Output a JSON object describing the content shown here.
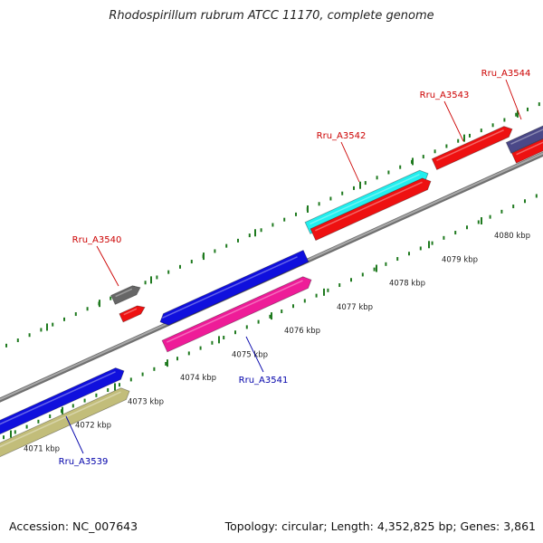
{
  "title": "Rhodospirillum rubrum ATCC 11170, complete genome",
  "footer": {
    "accession": "Accession: NC_007643",
    "stats": "Topology: circular; Length: 4,352,825 bp; Genes: 3,861"
  },
  "colors": {
    "background": "#ffffff",
    "backbone": "#8a8a8a",
    "tick": "#1f7a1f",
    "label_forward": "#cc0000",
    "label_reverse": "#0000aa",
    "leader_forward": "#cc0000",
    "leader_reverse": "#0000aa"
  },
  "scale_ticks": [
    {
      "label": "4071 kbp"
    },
    {
      "label": "4072 kbp"
    },
    {
      "label": "4073 kbp"
    },
    {
      "label": "4074 kbp"
    },
    {
      "label": "4075 kbp"
    },
    {
      "label": "4076 kbp"
    },
    {
      "label": "4077 kbp"
    },
    {
      "label": "4078 kbp"
    },
    {
      "label": "4079 kbp"
    },
    {
      "label": "4080 kbp"
    }
  ],
  "gene_labels": [
    {
      "name": "Rru_A3539",
      "strand": "reverse"
    },
    {
      "name": "Rru_A3540",
      "strand": "forward"
    },
    {
      "name": "Rru_A3541",
      "strand": "reverse"
    },
    {
      "name": "Rru_A3542",
      "strand": "forward"
    },
    {
      "name": "Rru_A3543",
      "strand": "forward"
    },
    {
      "name": "Rru_A3544",
      "strand": "forward"
    }
  ],
  "feature_colors": {
    "blue": "#1010dd",
    "khaki": "#c2bd7a",
    "pink": "#ee1c98",
    "cyan": "#22eeee",
    "red": "#ee1111",
    "gray": "#666666",
    "slate": "#4a4888"
  }
}
